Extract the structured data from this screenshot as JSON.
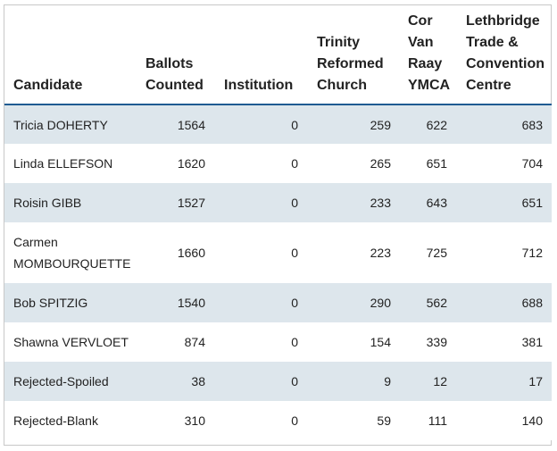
{
  "table": {
    "headers": [
      "Candidate",
      "Ballots Counted",
      "Institution",
      "Trinity Reformed Church",
      "Cor Van Raay YMCA",
      "Lethbridge Trade & Convention Centre"
    ],
    "header_lines": [
      [
        "Candidate"
      ],
      [
        "Ballots",
        "Counted"
      ],
      [
        "Institution"
      ],
      [
        "Trinity",
        "Reformed",
        "Church"
      ],
      [
        "Cor",
        "Van",
        "Raay",
        "YMCA"
      ],
      [
        "Lethbridge",
        "Trade &",
        "Convention",
        "Centre"
      ]
    ],
    "rows": [
      {
        "candidate": "Tricia DOHERTY",
        "ballots": "1564",
        "institution": "0",
        "trinity": "259",
        "ymca": "622",
        "ltcc": "683"
      },
      {
        "candidate": "Linda ELLEFSON",
        "ballots": "1620",
        "institution": "0",
        "trinity": "265",
        "ymca": "651",
        "ltcc": "704"
      },
      {
        "candidate": "Roisin GIBB",
        "ballots": "1527",
        "institution": "0",
        "trinity": "233",
        "ymca": "643",
        "ltcc": "651"
      },
      {
        "candidate": "Carmen MOMBOURQUETTE",
        "ballots": "1660",
        "institution": "0",
        "trinity": "223",
        "ymca": "725",
        "ltcc": "712"
      },
      {
        "candidate": "Bob SPITZIG",
        "ballots": "1540",
        "institution": "0",
        "trinity": "290",
        "ymca": "562",
        "ltcc": "688"
      },
      {
        "candidate": "Shawna VERVLOET",
        "ballots": "874",
        "institution": "0",
        "trinity": "154",
        "ymca": "339",
        "ltcc": "381"
      },
      {
        "candidate": "Rejected-Spoiled",
        "ballots": "38",
        "institution": "0",
        "trinity": "9",
        "ymca": "12",
        "ltcc": "17"
      },
      {
        "candidate": "Rejected-Blank",
        "ballots": "310",
        "institution": "0",
        "trinity": "59",
        "ymca": "111",
        "ltcc": "140"
      }
    ]
  },
  "colors": {
    "header_rule": "#1f5b92",
    "stripe": "#dde6ec",
    "border": "#c8c8c8"
  }
}
